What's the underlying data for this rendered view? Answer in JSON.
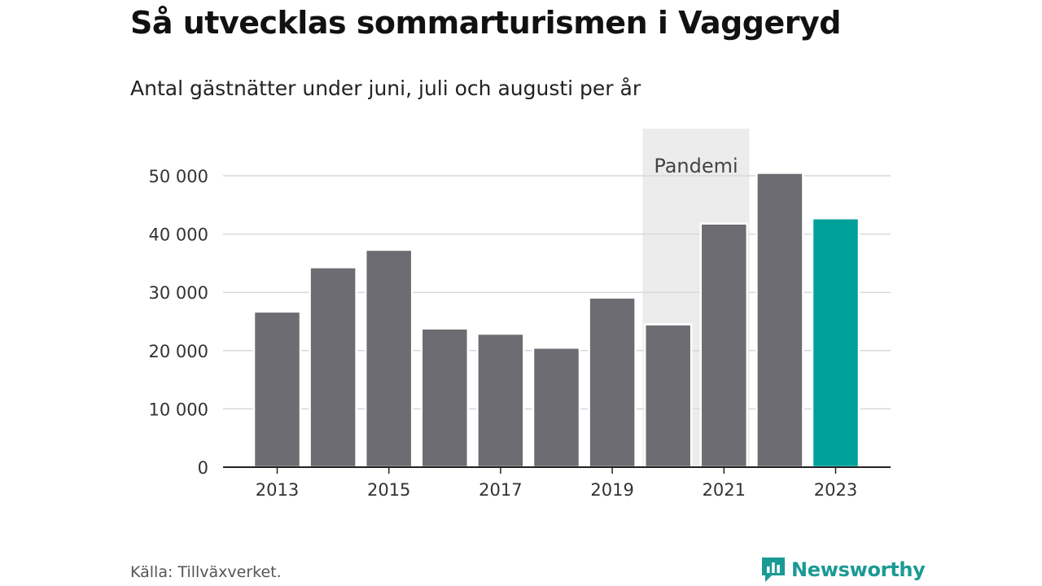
{
  "header": {
    "title": "Så utvecklas sommarturismen i Vaggeryd",
    "subtitle": "Antal gästnätter under juni, juli och augusti per år"
  },
  "footer": {
    "source": "Källa: Tillväxverket.",
    "brand": "Newsworthy"
  },
  "colors": {
    "bar": "#6d6c72",
    "highlight": "#00a19a",
    "pandemic_band": "#ececec",
    "brand": "#1a9a94"
  },
  "chart_data": {
    "type": "bar",
    "title": "Så utvecklas sommarturismen i Vaggeryd",
    "subtitle": "Antal gästnätter under juni, juli och augusti per år",
    "categories": [
      "2013",
      "2014",
      "2015",
      "2016",
      "2017",
      "2018",
      "2019",
      "2020",
      "2021",
      "2022",
      "2023"
    ],
    "values": [
      26700,
      34300,
      37300,
      23800,
      22900,
      20500,
      29100,
      24500,
      41800,
      50500,
      42700
    ],
    "highlight_category": "2023",
    "ylim": [
      0,
      50000
    ],
    "yticks": [
      0,
      10000,
      20000,
      30000,
      40000,
      50000
    ],
    "ytick_labels": [
      "0",
      "10 000",
      "20 000",
      "30 000",
      "40 000",
      "50 000"
    ],
    "xtick_labels": [
      "2013",
      "2015",
      "2017",
      "2019",
      "2021",
      "2023"
    ],
    "grid": true,
    "annotation": {
      "label": "Pandemi",
      "from": "2020",
      "to": "2021"
    }
  }
}
